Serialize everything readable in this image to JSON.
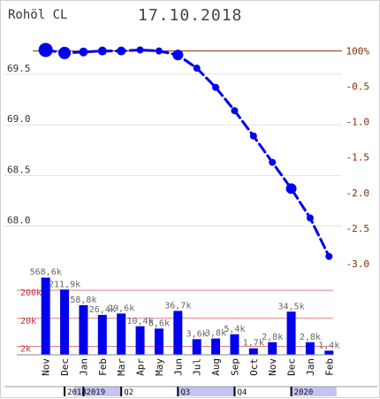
{
  "header": {
    "symbol": "Rohöl CL",
    "date": "17.10.2018"
  },
  "chart_data": [
    {
      "type": "line",
      "title": "Rohöl CL",
      "subtitle": "17.10.2018",
      "categories": [
        "Nov",
        "Dec",
        "Jan",
        "Feb",
        "Mar",
        "Apr",
        "May",
        "Jun",
        "Jul",
        "Aug",
        "Sep",
        "Oct",
        "Nov",
        "Dec",
        "Jan",
        "Feb"
      ],
      "series": [
        {
          "values": [
            69.74,
            69.71,
            69.72,
            69.73,
            69.73,
            69.74,
            69.73,
            69.69,
            69.56,
            69.37,
            69.14,
            68.89,
            68.63,
            68.37,
            68.08,
            67.7
          ]
        }
      ],
      "marker_sizes": [
        8,
        7,
        5,
        5,
        5,
        4,
        4,
        6,
        4,
        4,
        4,
        4,
        4,
        6,
        4,
        4
      ],
      "ylim": [
        67.55,
        69.98
      ],
      "yticks": [
        "69.5",
        "69.0",
        "68.5",
        "68.0"
      ],
      "ytick_values": [
        69.5,
        69.0,
        68.5,
        68.0
      ],
      "y2_labels": [
        "100%",
        "-0.5",
        "-1.0",
        "-1.5",
        "-2.0",
        "-2.5",
        "-3.0"
      ],
      "y2_values": [
        69.73,
        69.38,
        69.03,
        68.68,
        68.33,
        67.98,
        67.63
      ],
      "line_color": "#0000ee",
      "line_style": "dashed",
      "ref_line_color": "#8b2a00",
      "grid": true
    },
    {
      "type": "bar",
      "categories": [
        "Nov",
        "Dec",
        "Jan",
        "Feb",
        "Mar",
        "Apr",
        "May",
        "Jun",
        "Jul",
        "Aug",
        "Sep",
        "Oct",
        "Nov",
        "Dec",
        "Jan",
        "Feb"
      ],
      "values": [
        568600,
        211900,
        58800,
        26400,
        29600,
        10400,
        8600,
        36700,
        3600,
        3800,
        5400,
        1700,
        2800,
        34500,
        2800,
        1400
      ],
      "value_labels": [
        "568,6k",
        "211,9k",
        "58,8k",
        "26,4k",
        "29,6k",
        "10,4k",
        "8,6k",
        "36,7k",
        "3,6k",
        "3,8k",
        "5,4k",
        "1,7k",
        "2,8k",
        "34,5k",
        "2,8k",
        "1,4k"
      ],
      "yticks": [
        "200k",
        "20k",
        "2k"
      ],
      "ytick_values": [
        200000,
        20000,
        2000
      ],
      "scale": "log",
      "bar_color": "#0000ee",
      "ref_line_color": "#e08080"
    }
  ],
  "timeline": {
    "labels": [
      "2018",
      "2019",
      "Q2",
      "Q3",
      "Q4",
      "2020"
    ],
    "positions": [
      1.5,
      2.5,
      4.5,
      7.5,
      10.5,
      13.5
    ],
    "shaded": [
      [
        2,
        4.5
      ],
      [
        7.5,
        10.5
      ],
      [
        13.5,
        15.9
      ]
    ],
    "shade_color": "#c4c4f4"
  }
}
